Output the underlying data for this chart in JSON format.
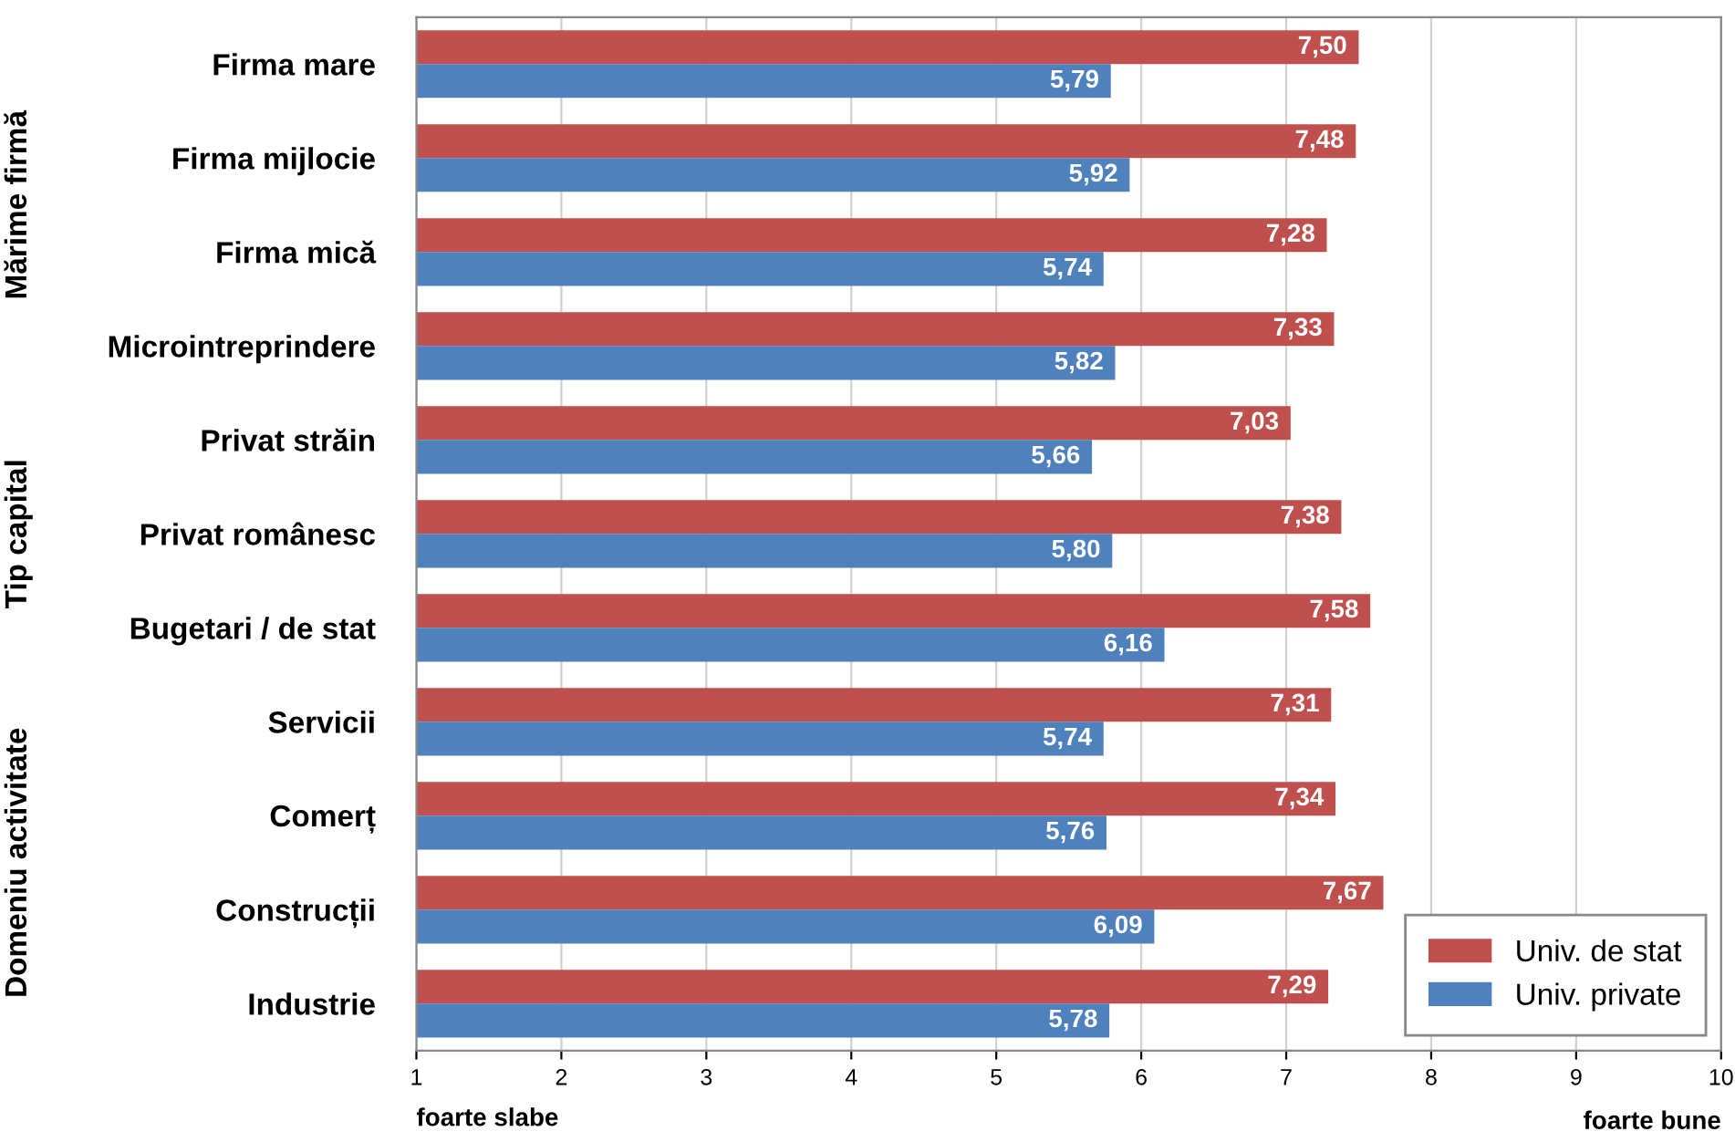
{
  "chart_data": {
    "type": "bar",
    "orientation": "horizontal",
    "categories": [
      "Firma mare",
      "Firma mijlocie",
      "Firma mică",
      "Microintreprindere",
      "Privat străin",
      "Privat românesc",
      "Bugetari / de stat",
      "Servicii",
      "Comerț",
      "Construcții",
      "Industrie"
    ],
    "series": [
      {
        "name": "Univ. de stat",
        "color": "#c0504d",
        "values": [
          7.5,
          7.48,
          7.28,
          7.33,
          7.03,
          7.38,
          7.58,
          7.31,
          7.34,
          7.67,
          7.29
        ],
        "value_labels": [
          "7,50",
          "7,48",
          "7,28",
          "7,33",
          "7,03",
          "7,38",
          "7,58",
          "7,31",
          "7,34",
          "7,67",
          "7,29"
        ]
      },
      {
        "name": "Univ. private",
        "color": "#4f81bd",
        "values": [
          5.79,
          5.92,
          5.74,
          5.82,
          5.66,
          5.8,
          6.16,
          5.74,
          5.76,
          6.09,
          5.78
        ],
        "value_labels": [
          "5,79",
          "5,92",
          "5,74",
          "5,82",
          "5,66",
          "5,80",
          "6,16",
          "5,74",
          "5,76",
          "6,09",
          "5,78"
        ]
      }
    ],
    "xlim": [
      1,
      10
    ],
    "xticks": [
      1,
      2,
      3,
      4,
      5,
      6,
      7,
      8,
      9,
      10
    ],
    "grid": "x",
    "legend": "bottom right",
    "annotations": [
      "Mărime firmă",
      "Tip capital",
      "Domeniu activitate",
      "foarte slabe",
      "foarte bune"
    ]
  }
}
